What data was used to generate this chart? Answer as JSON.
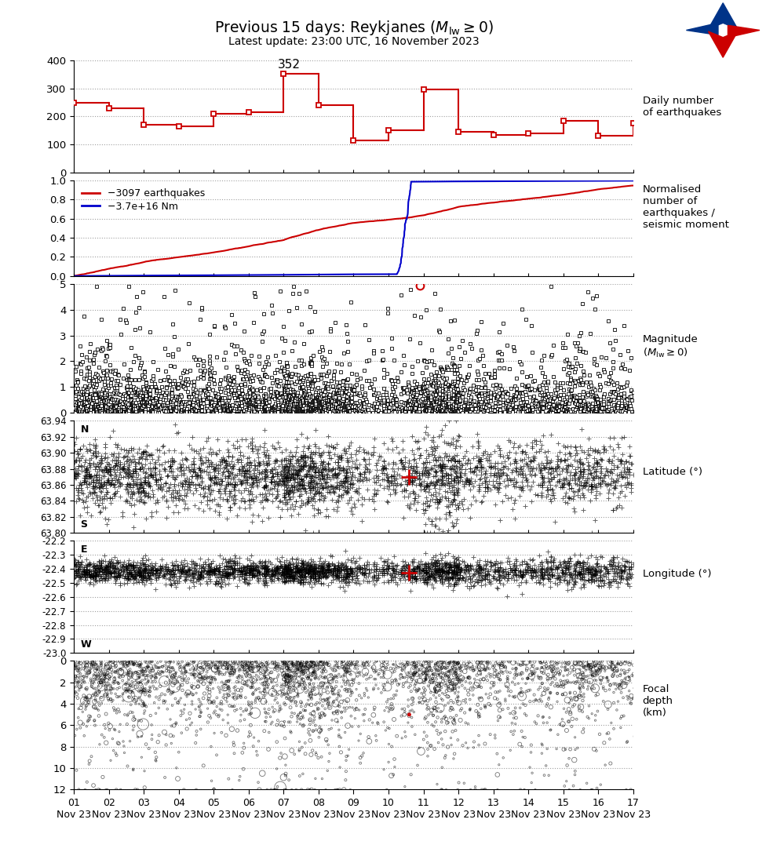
{
  "title": "Previous 15 days: Reykjanes ($M_{\\mathrm{lw}} \\geq 0$)",
  "subtitle": "Latest update: 23:00 UTC, 16 November 2023",
  "panel1": {
    "day_counts": [
      250,
      230,
      170,
      165,
      210,
      215,
      352,
      240,
      115,
      150,
      295,
      145,
      135,
      140,
      185,
      130,
      175
    ],
    "peak_label": "352",
    "peak_day": 7,
    "peak_val": 352,
    "ylim": [
      0,
      400
    ],
    "yticks": [
      0,
      100,
      200,
      300,
      400
    ],
    "color": "#cc0000"
  },
  "panel2": {
    "ylim": [
      0.0,
      1.0
    ],
    "yticks": [
      0.0,
      0.2,
      0.4,
      0.6,
      0.8,
      1.0
    ],
    "legend1": "−3097 earthquakes",
    "legend2": "−3.7e+16 Nm",
    "color_eq": "#cc0000",
    "color_sm": "#0000cc"
  },
  "panel3": {
    "ylim": [
      0,
      5
    ],
    "yticks": [
      0,
      1,
      2,
      3,
      4,
      5
    ],
    "highlight_color": "#cc0000"
  },
  "panel4": {
    "ylim": [
      63.8,
      63.94
    ],
    "yticks": [
      63.8,
      63.82,
      63.84,
      63.86,
      63.88,
      63.9,
      63.92,
      63.94
    ],
    "highlight_color": "#cc0000"
  },
  "panel5": {
    "ylim": [
      -23.0,
      -22.2
    ],
    "yticks": [
      -23.0,
      -22.9,
      -22.8,
      -22.7,
      -22.6,
      -22.5,
      -22.4,
      -22.3,
      -22.2
    ],
    "highlight_color": "#cc0000"
  },
  "panel6": {
    "ylim": [
      12,
      0
    ],
    "yticks": [
      0,
      2,
      4,
      6,
      8,
      10,
      12
    ],
    "highlight_color": "#cc0000"
  },
  "xlim": [
    1.0,
    17.0
  ],
  "xtick_positions": [
    1,
    2,
    3,
    4,
    5,
    6,
    7,
    8,
    9,
    10,
    11,
    12,
    13,
    14,
    15,
    16,
    17
  ],
  "xtick_day_labels": [
    "01",
    "02",
    "03",
    "04",
    "05",
    "06",
    "07",
    "08",
    "09",
    "10",
    "11",
    "12",
    "13",
    "14",
    "15",
    "16",
    "17"
  ],
  "bg_color": "#ffffff",
  "logo_blue": "#003388",
  "logo_red": "#cc0000"
}
